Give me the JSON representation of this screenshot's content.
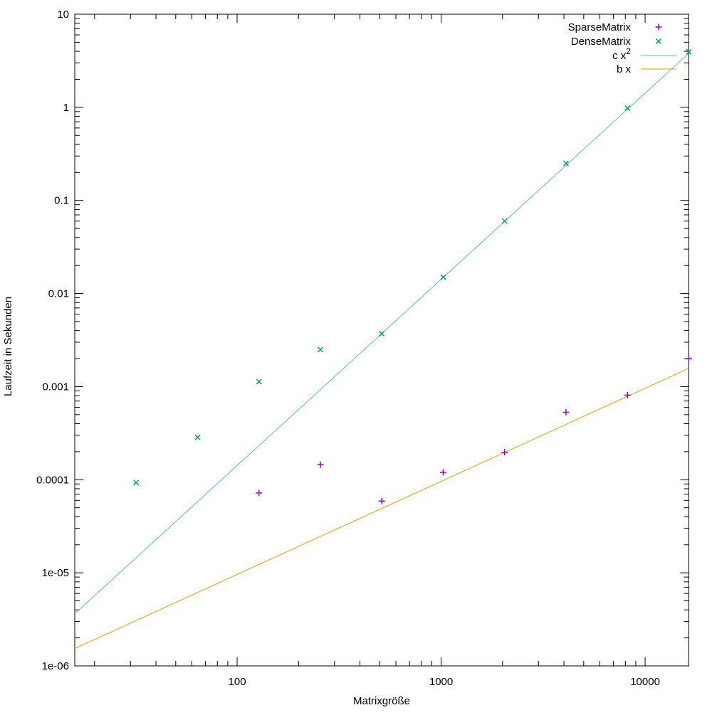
{
  "figure": {
    "background": "#ffffff",
    "text_color": "#000000",
    "xlabel": "Matrixgröße",
    "ylabel": "Laufzeit in Sekunden"
  },
  "chart_data": {
    "type": "scatter",
    "x_scale": "log",
    "y_scale": "log",
    "xlim": [
      16,
      16384
    ],
    "ylim": [
      1e-06,
      10
    ],
    "x_ticks": [
      100,
      1000,
      10000
    ],
    "x_tick_labels": [
      "100",
      "1000",
      "10000"
    ],
    "y_ticks": [
      10,
      1,
      0.1,
      0.01,
      0.001,
      0.0001,
      1e-05,
      1e-06
    ],
    "y_tick_labels": [
      "10",
      "1",
      "0.1",
      "0.01",
      "0.001",
      "0.0001",
      "1e-05",
      "1e-06"
    ],
    "grid": false,
    "legend_position": "top-right-inside",
    "series": [
      {
        "name": "SparseMatrix",
        "kind": "points",
        "marker": "plus",
        "color": "#9400d3",
        "x": [
          128,
          256,
          512,
          1024,
          2048,
          4096,
          8192,
          16384
        ],
        "y": [
          7.2e-05,
          0.000145,
          5.9e-05,
          0.00012,
          0.000197,
          0.00053,
          0.00081,
          0.002
        ]
      },
      {
        "name": "DenseMatrix",
        "kind": "points",
        "marker": "cross",
        "color": "#009e73",
        "x": [
          32,
          64,
          128,
          256,
          512,
          1024,
          2048,
          4096,
          8192,
          16384
        ],
        "y": [
          9.3e-05,
          0.000285,
          0.00113,
          0.0025,
          0.0037,
          0.015,
          0.06,
          0.25,
          0.98,
          3.95
        ]
      },
      {
        "name": "c x^2",
        "legend_label": "c x",
        "legend_sup": "2",
        "kind": "line",
        "color": "#56b4e9",
        "coefficient": 1.42e-08,
        "power": 2
      },
      {
        "name": "b x",
        "legend_label": "b x",
        "legend_sup": "",
        "kind": "line",
        "color": "#e69f00",
        "coefficient": 9.6e-08,
        "power": 1
      }
    ]
  }
}
